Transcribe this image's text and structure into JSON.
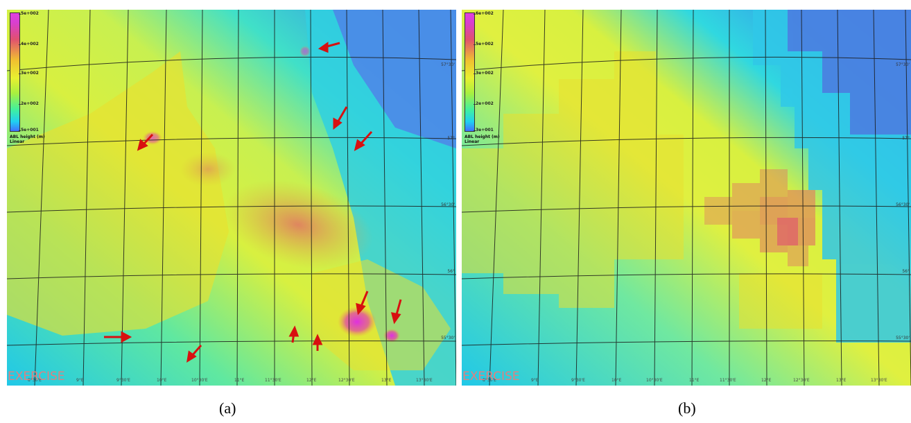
{
  "panels": [
    {
      "id": "a",
      "caption": "(a)",
      "colorbar": {
        "ticks": [
          "5e+002",
          "4e+002",
          "3e+002",
          "2e+002",
          "5e+001"
        ],
        "title_line1": "ABL height (m)",
        "title_line2": "Linear"
      },
      "watermark": "EXERCISE",
      "lon_labels": [
        "8°30'E",
        "9°E",
        "9°30'E",
        "10°E",
        "10°30'E",
        "11°E",
        "11°30'E",
        "12°E",
        "12°30'E",
        "13°E",
        "13°30'E"
      ],
      "lat_labels": [
        "57°30'",
        "57°",
        "56°30'",
        "56°",
        "55°30'"
      ],
      "arrows_count": 12
    },
    {
      "id": "b",
      "caption": "(b)",
      "colorbar": {
        "ticks": [
          "6e+002",
          "5e+002",
          "3e+002",
          "2e+002",
          "3e+001"
        ],
        "title_line1": "ABL height (m)",
        "title_line2": "Linear"
      },
      "watermark": "EXERCISE",
      "lon_labels": [
        "8°30'E",
        "9°E",
        "9°30'E",
        "10°E",
        "10°30'E",
        "11°E",
        "11°30'E",
        "12°E",
        "12°30'E",
        "13°E",
        "13°30'E"
      ],
      "lat_labels": [
        "57°30'",
        "57°",
        "56°30'",
        "56°",
        "55°30'"
      ]
    }
  ],
  "colors": {
    "sea": "#20d4c8",
    "land_low": "#c8f040",
    "land_high": "#f0e030",
    "plume": "#e08060",
    "peak": "#e040e0",
    "arrow": "#e01010",
    "grid": "#202020"
  }
}
